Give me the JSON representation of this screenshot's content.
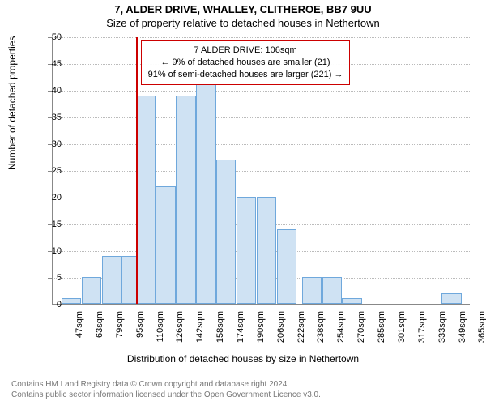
{
  "title_line1": "7, ALDER DRIVE, WHALLEY, CLITHEROE, BB7 9UU",
  "title_line2": "Size of property relative to detached houses in Nethertown",
  "y_axis_label": "Number of detached properties",
  "x_axis_label": "Distribution of detached houses by size in Nethertown",
  "chart": {
    "type": "histogram",
    "ylim": [
      0,
      50
    ],
    "ytick_step": 5,
    "x_tick_labels": [
      "47sqm",
      "63sqm",
      "79sqm",
      "95sqm",
      "110sqm",
      "126sqm",
      "142sqm",
      "158sqm",
      "174sqm",
      "190sqm",
      "206sqm",
      "222sqm",
      "238sqm",
      "254sqm",
      "270sqm",
      "285sqm",
      "301sqm",
      "317sqm",
      "333sqm",
      "349sqm",
      "365sqm"
    ],
    "x_tick_step_sqm": 16,
    "bars": [
      {
        "sqm": 47,
        "value": 1
      },
      {
        "sqm": 63,
        "value": 5
      },
      {
        "sqm": 79,
        "value": 9
      },
      {
        "sqm": 95,
        "value": 9
      },
      {
        "sqm": 106,
        "value": 39
      },
      {
        "sqm": 122,
        "value": 22
      },
      {
        "sqm": 138,
        "value": 39
      },
      {
        "sqm": 154,
        "value": 41
      },
      {
        "sqm": 170,
        "value": 27
      },
      {
        "sqm": 186,
        "value": 20
      },
      {
        "sqm": 202,
        "value": 20
      },
      {
        "sqm": 218,
        "value": 14
      },
      {
        "sqm": 238,
        "value": 5
      },
      {
        "sqm": 254,
        "value": 5
      },
      {
        "sqm": 270,
        "value": 1
      },
      {
        "sqm": 349,
        "value": 2
      }
    ],
    "bar_color": "#cfe2f3",
    "bar_border_color": "#6fa8dc",
    "grid_color": "#bbbbbb",
    "axis_color": "#888888",
    "background_color": "#ffffff",
    "x_start_sqm": 40,
    "x_end_sqm": 372
  },
  "marker": {
    "sqm": 106,
    "color": "#cc0000"
  },
  "annotation": {
    "line1": "7 ALDER DRIVE: 106sqm",
    "line2": "← 9% of detached houses are smaller (21)",
    "line3": "91% of semi-detached houses are larger (221) →",
    "border_color": "#cc0000"
  },
  "footer": {
    "line1": "Contains HM Land Registry data © Crown copyright and database right 2024.",
    "line2": "Contains public sector information licensed under the Open Government Licence v3.0."
  }
}
